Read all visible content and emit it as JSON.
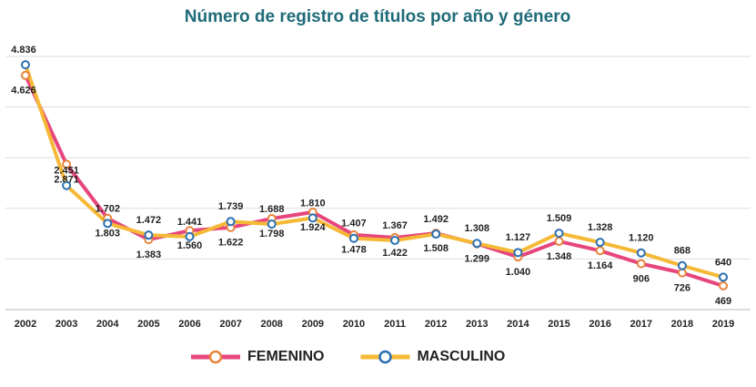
{
  "chart_data": {
    "type": "line",
    "title": "Número de registro de títulos por año y género",
    "categories": [
      "2002",
      "2003",
      "2004",
      "2005",
      "2006",
      "2007",
      "2008",
      "2009",
      "2010",
      "2011",
      "2012",
      "2013",
      "2014",
      "2015",
      "2016",
      "2017",
      "2018",
      "2019"
    ],
    "series": [
      {
        "name": "FEMENINO",
        "color": "#e6467c",
        "marker_color": "#e8843c",
        "values": [
          4626,
          2871,
          1803,
          1383,
          1560,
          1622,
          1798,
          1924,
          1478,
          1422,
          1508,
          1299,
          1040,
          1348,
          1164,
          906,
          726,
          469
        ],
        "value_labels": [
          "4.626",
          "2.871",
          "1.803",
          "1.383",
          "1.560",
          "1.622",
          "1.798",
          "1.924",
          "1.478",
          "1.422",
          "1.508",
          "1.299",
          "1.040",
          "1.348",
          "1.164",
          "906",
          "726",
          "469"
        ]
      },
      {
        "name": "MASCULINO",
        "color": "#f5b935",
        "marker_color": "#2a6fb3",
        "values": [
          4836,
          2451,
          1702,
          1472,
          1441,
          1739,
          1688,
          1810,
          1407,
          1367,
          1492,
          1308,
          1127,
          1509,
          1328,
          1120,
          868,
          640
        ],
        "value_labels": [
          "4.836",
          "2.451",
          "1.702",
          "1.472",
          "1.441",
          "1.739",
          "1.688",
          "1.810",
          "1.407",
          "1.367",
          "1.492",
          "1.308",
          "1.127",
          "1.509",
          "1.328",
          "1.120",
          "868",
          "640"
        ]
      }
    ],
    "ylim": [
      0,
      5000
    ],
    "yticks": [
      0,
      1000,
      2000,
      3000,
      4000,
      5000
    ],
    "grid": true,
    "legend": "bottom"
  }
}
